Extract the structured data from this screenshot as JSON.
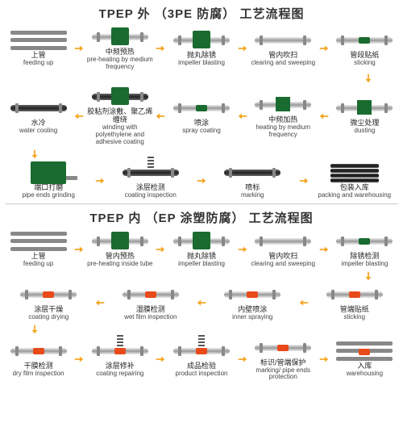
{
  "colors": {
    "green": "#1a6b2f",
    "orange": "#f5a623",
    "arrow": "#f5a623",
    "red": "#e84a1a",
    "pipe": "#999",
    "dark": "#333"
  },
  "section1": {
    "title": "TPEP 外 （3PE 防腐） 工艺流程图",
    "rows": [
      {
        "dir": "ltr",
        "steps": [
          {
            "cn": "上管",
            "en": "feeding up",
            "g": "rack"
          },
          {
            "cn": "中频预热",
            "en": "pre-heating by medium frequency",
            "g": "pipe-box"
          },
          {
            "cn": "抛丸除锈",
            "en": "impeller blasting",
            "g": "pipe-box"
          },
          {
            "cn": "管内吹扫",
            "en": "clearing and sweeping",
            "g": "pipe"
          },
          {
            "cn": "管段贴纸",
            "en": "sticking",
            "g": "pipe-g"
          }
        ]
      },
      {
        "dir": "rtl",
        "steps": [
          {
            "cn": "水冷",
            "en": "water cooling",
            "g": "pipe-dark"
          },
          {
            "cn": "胶粘剂涂敷、聚乙烯缠绕",
            "en": "winding with polyethylene and adhesive coating",
            "g": "pipe-dark-box"
          },
          {
            "cn": "喷涂",
            "en": "spray coating",
            "g": "pipe-band-g"
          },
          {
            "cn": "中频加热",
            "en": "heating by medium frequency",
            "g": "pipe-box2"
          },
          {
            "cn": "微尘处理",
            "en": "dusting",
            "g": "pipe-box2"
          }
        ]
      },
      {
        "dir": "ltr",
        "steps": [
          {
            "cn": "端口打磨",
            "en": "pipe ends grinding",
            "g": "machine"
          },
          {
            "cn": "涂层检测",
            "en": "coating inspection",
            "g": "pipe-dark-spring"
          },
          {
            "cn": "喷标",
            "en": "marking",
            "g": "pipe-dark"
          },
          {
            "cn": "包装入库",
            "en": "packing and warehousing",
            "g": "stack"
          }
        ]
      }
    ]
  },
  "section2": {
    "title": "TPEP 内 （EP 涂塑防腐） 工艺流程图",
    "rows": [
      {
        "dir": "ltr",
        "steps": [
          {
            "cn": "上管",
            "en": "feeding up",
            "g": "rack"
          },
          {
            "cn": "管内预热",
            "en": "pre-heating inside tube",
            "g": "pipe-box"
          },
          {
            "cn": "抛丸除锈",
            "en": "impeller blasting",
            "g": "pipe-box"
          },
          {
            "cn": "管内吹扫",
            "en": "clearing and sweeping",
            "g": "pipe"
          },
          {
            "cn": "除锈检测",
            "en": "impeller blasting",
            "g": "pipe-g"
          }
        ]
      },
      {
        "dir": "rtl",
        "steps": [
          {
            "cn": "涂层干燥",
            "en": "coating drying",
            "g": "pipe-band-r"
          },
          {
            "cn": "湿膜检测",
            "en": "wet film inspection",
            "g": "pipe-band-r"
          },
          {
            "cn": "内壁喷涂",
            "en": "inner spraying",
            "g": "pipe-band-r"
          },
          {
            "cn": "管端贴纸",
            "en": "sticking",
            "g": "pipe-band-r"
          }
        ]
      },
      {
        "dir": "ltr",
        "steps": [
          {
            "cn": "干膜检测",
            "en": "dry film inspection",
            "g": "pipe-band-r"
          },
          {
            "cn": "涂层修补",
            "en": "coating repairing",
            "g": "pipe-spring-r"
          },
          {
            "cn": "成品检验",
            "en": "product inspection",
            "g": "pipe-spring-r"
          },
          {
            "cn": "标识/管端保护",
            "en": "marking/ pipe ends protection",
            "g": "pipe-band-r"
          },
          {
            "cn": "入库",
            "en": "warehousing",
            "g": "rack-r"
          }
        ]
      }
    ]
  }
}
